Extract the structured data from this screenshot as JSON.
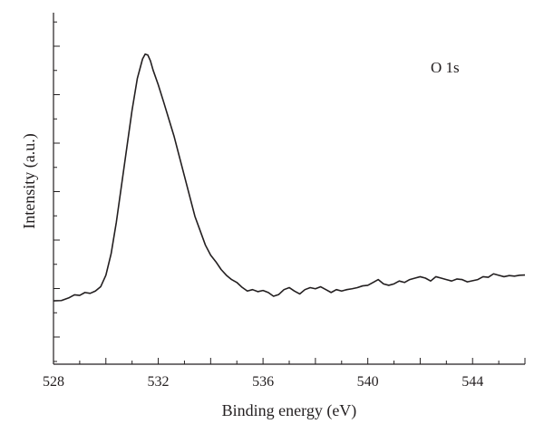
{
  "chart_data": {
    "type": "line",
    "title": "",
    "xlabel": "Binding energy (eV)",
    "ylabel": "Intensity (a.u.)",
    "annotation": "O 1s",
    "xlim": [
      528,
      546
    ],
    "ylim": [
      0,
      1
    ],
    "x_ticks": [
      528,
      532,
      536,
      540,
      544
    ],
    "y_tick_labels_shown": false,
    "grid": false,
    "legend": "none",
    "line_color": "#231f20",
    "series": [
      {
        "x": [
          528.0,
          528.3,
          528.6,
          528.8,
          529.0,
          529.2,
          529.4,
          529.6,
          529.8,
          530.0,
          530.2,
          530.4,
          530.6,
          530.8,
          531.0,
          531.2,
          531.4,
          531.5,
          531.6,
          531.7,
          531.8,
          532.0,
          532.2,
          532.4,
          532.6,
          532.8,
          533.0,
          533.2,
          533.4,
          533.6,
          533.8,
          534.0,
          534.2,
          534.4,
          534.6,
          534.8,
          535.0,
          535.2,
          535.4,
          535.6,
          535.8,
          536.0,
          536.2,
          536.4,
          536.6,
          536.8,
          537.0,
          537.2,
          537.4,
          537.6,
          537.8,
          538.0,
          538.2,
          538.4,
          538.6,
          538.8,
          539.0,
          539.2,
          539.4,
          539.6,
          539.8,
          540.0,
          540.2,
          540.4,
          540.6,
          540.8,
          541.0,
          541.2,
          541.4,
          541.6,
          541.8,
          542.0,
          542.2,
          542.4,
          542.6,
          542.8,
          543.0,
          543.2,
          543.4,
          543.6,
          543.8,
          544.0,
          544.2,
          544.4,
          544.6,
          544.8,
          545.0,
          545.2,
          545.4,
          545.6,
          545.8,
          546.0
        ],
        "y": [
          0.126,
          0.127,
          0.137,
          0.147,
          0.145,
          0.155,
          0.152,
          0.16,
          0.175,
          0.215,
          0.29,
          0.4,
          0.53,
          0.66,
          0.79,
          0.9,
          0.968,
          0.985,
          0.982,
          0.962,
          0.93,
          0.878,
          0.82,
          0.76,
          0.7,
          0.63,
          0.56,
          0.49,
          0.42,
          0.37,
          0.32,
          0.285,
          0.262,
          0.235,
          0.215,
          0.2,
          0.19,
          0.173,
          0.16,
          0.165,
          0.158,
          0.162,
          0.155,
          0.142,
          0.148,
          0.165,
          0.172,
          0.16,
          0.15,
          0.165,
          0.172,
          0.168,
          0.175,
          0.165,
          0.155,
          0.165,
          0.16,
          0.165,
          0.168,
          0.172,
          0.178,
          0.18,
          0.19,
          0.2,
          0.185,
          0.18,
          0.185,
          0.195,
          0.19,
          0.2,
          0.205,
          0.21,
          0.205,
          0.195,
          0.21,
          0.205,
          0.2,
          0.195,
          0.202,
          0.2,
          0.192,
          0.196,
          0.2,
          0.21,
          0.208,
          0.22,
          0.215,
          0.21,
          0.214,
          0.212,
          0.215,
          0.216
        ]
      }
    ]
  }
}
